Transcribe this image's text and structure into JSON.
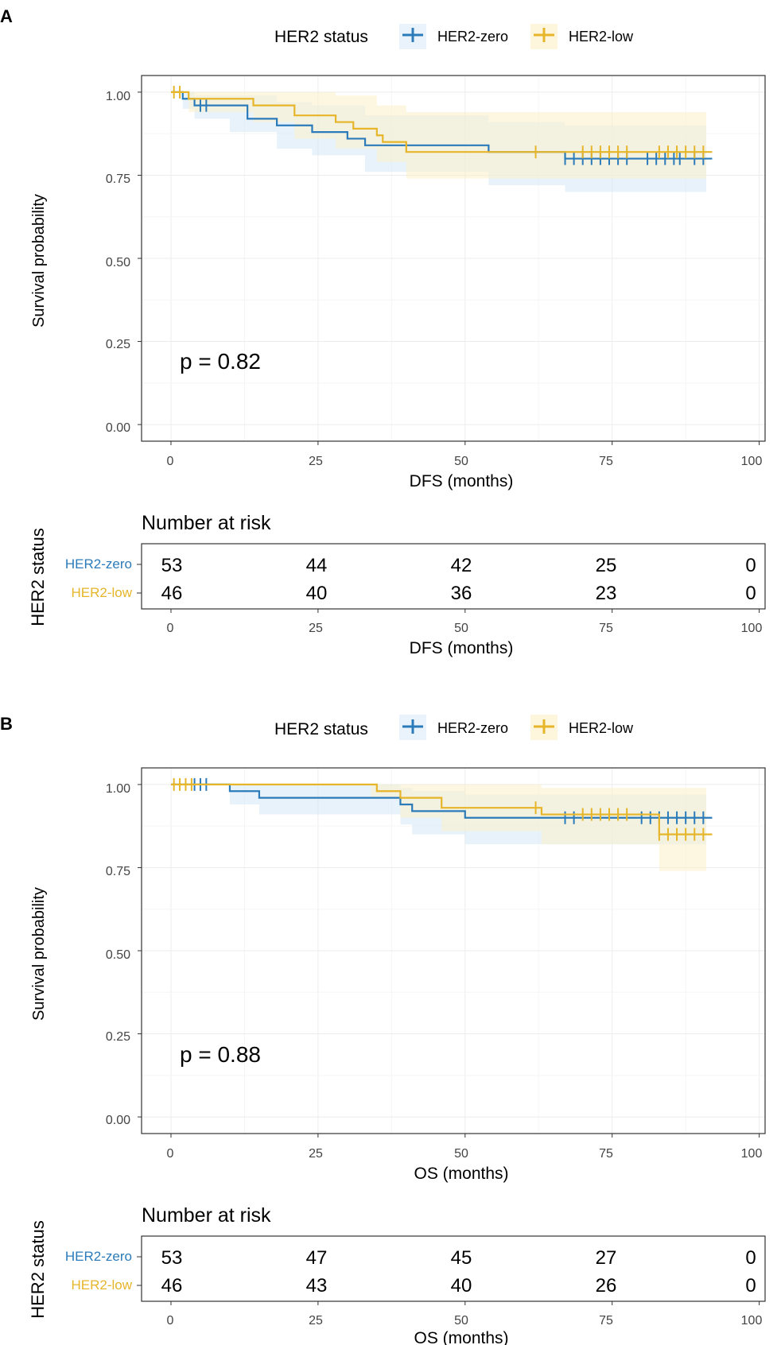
{
  "colors": {
    "zero": "#2b7bba",
    "low": "#e6b52a",
    "zero_band": "#d6e8f6",
    "low_band": "#fbf0c8"
  },
  "chart_data": [
    {
      "type": "line",
      "panel": "A",
      "legend_title": "HER2 status",
      "legend": [
        "HER2-zero",
        "HER2-low"
      ],
      "ylabel": "Survival probability",
      "xlabel": "DFS (months)",
      "xlim": [
        -5,
        101
      ],
      "ylim": [
        -0.05,
        1.05
      ],
      "xticks": [
        "0",
        "25",
        "50",
        "75",
        "100"
      ],
      "yticks": [
        "0.00",
        "0.25",
        "0.50",
        "0.75",
        "1.00"
      ],
      "pvalue": "p = 0.82",
      "series": [
        {
          "name": "HER2-zero",
          "steps": [
            [
              0,
              1
            ],
            [
              2,
              0.98
            ],
            [
              4,
              0.96
            ],
            [
              10,
              0.96
            ],
            [
              13,
              0.92
            ],
            [
              18,
              0.9
            ],
            [
              24,
              0.88
            ],
            [
              30,
              0.86
            ],
            [
              33,
              0.84
            ],
            [
              54,
              0.82
            ],
            [
              67,
              0.8
            ],
            [
              92,
              0.8
            ]
          ],
          "band": [
            [
              0,
              1,
              1
            ],
            [
              2,
              1,
              0.95
            ],
            [
              4,
              0.99,
              0.92
            ],
            [
              10,
              0.99,
              0.88
            ],
            [
              18,
              0.97,
              0.83
            ],
            [
              24,
              0.96,
              0.81
            ],
            [
              33,
              0.93,
              0.76
            ],
            [
              54,
              0.91,
              0.72
            ],
            [
              67,
              0.9,
              0.7
            ],
            [
              91,
              0.9,
              0.7
            ]
          ],
          "censor": [
            5,
            6,
            67,
            68.5,
            70,
            71.5,
            73,
            74.5,
            76,
            77.5,
            81,
            82.5,
            84,
            85.5,
            86.5,
            89,
            90.5
          ]
        },
        {
          "name": "HER2-low",
          "steps": [
            [
              0,
              1
            ],
            [
              3,
              0.98
            ],
            [
              14,
              0.96
            ],
            [
              21,
              0.93
            ],
            [
              28,
              0.91
            ],
            [
              31,
              0.89
            ],
            [
              35,
              0.87
            ],
            [
              36,
              0.85
            ],
            [
              40,
              0.82
            ],
            [
              92,
              0.82
            ]
          ],
          "band": [
            [
              0,
              1,
              1
            ],
            [
              3,
              1,
              0.94
            ],
            [
              14,
              1,
              0.91
            ],
            [
              21,
              1,
              0.86
            ],
            [
              28,
              0.99,
              0.83
            ],
            [
              35,
              0.96,
              0.79
            ],
            [
              40,
              0.94,
              0.74
            ],
            [
              91,
              0.94,
              0.74
            ]
          ],
          "censor": [
            0.5,
            1.5,
            62,
            70,
            71.5,
            73,
            74.5,
            76,
            77.5,
            83,
            84.5,
            86,
            87.5,
            89,
            90.5
          ]
        }
      ],
      "risk_table": {
        "title": "Number at risk",
        "ylabel": "HER2 status",
        "xlabel": "DFS (months)",
        "rows": [
          {
            "name": "HER2-zero",
            "values": [
              "53",
              "44",
              "42",
              "25",
              "0"
            ]
          },
          {
            "name": "HER2-low",
            "values": [
              "46",
              "40",
              "36",
              "23",
              "0"
            ]
          }
        ]
      }
    },
    {
      "type": "line",
      "panel": "B",
      "legend_title": "HER2 status",
      "legend": [
        "HER2-zero",
        "HER2-low"
      ],
      "ylabel": "Survival probability",
      "xlabel": "OS (months)",
      "xlim": [
        -5,
        101
      ],
      "ylim": [
        -0.05,
        1.05
      ],
      "xticks": [
        "0",
        "25",
        "50",
        "75",
        "100"
      ],
      "yticks": [
        "0.00",
        "0.25",
        "0.50",
        "0.75",
        "1.00"
      ],
      "pvalue": "p = 0.88",
      "series": [
        {
          "name": "HER2-zero",
          "steps": [
            [
              0,
              1
            ],
            [
              10,
              0.98
            ],
            [
              15,
              0.96
            ],
            [
              39,
              0.94
            ],
            [
              41,
              0.92
            ],
            [
              50,
              0.9
            ],
            [
              92,
              0.9
            ]
          ],
          "band": [
            [
              0,
              1,
              1
            ],
            [
              10,
              1,
              0.94
            ],
            [
              15,
              1,
              0.91
            ],
            [
              39,
              0.99,
              0.88
            ],
            [
              41,
              0.98,
              0.85
            ],
            [
              50,
              0.97,
              0.82
            ],
            [
              91,
              0.97,
              0.82
            ]
          ],
          "censor": [
            4,
            5,
            6,
            67,
            68.5,
            80,
            81.5,
            83,
            84.5,
            86,
            87.5,
            89,
            90.5
          ]
        },
        {
          "name": "HER2-low",
          "steps": [
            [
              0,
              1
            ],
            [
              34,
              1
            ],
            [
              35,
              0.98
            ],
            [
              39,
              0.96
            ],
            [
              46,
              0.93
            ],
            [
              63,
              0.91
            ],
            [
              83,
              0.85
            ],
            [
              92,
              0.85
            ]
          ],
          "band": [
            [
              0,
              1,
              1
            ],
            [
              34,
              1,
              0.96
            ],
            [
              39,
              1,
              0.9
            ],
            [
              46,
              1,
              0.86
            ],
            [
              63,
              0.99,
              0.82
            ],
            [
              83,
              0.99,
              0.74
            ],
            [
              91,
              0.99,
              0.74
            ]
          ],
          "censor": [
            0.5,
            1.5,
            2.5,
            3.5,
            62,
            70,
            71.5,
            73,
            74.5,
            76,
            77.5,
            83,
            84.5,
            86,
            87.5,
            89,
            90.5
          ]
        }
      ],
      "risk_table": {
        "title": "Number at risk",
        "ylabel": "HER2 status",
        "xlabel": "OS (months)",
        "rows": [
          {
            "name": "HER2-zero",
            "values": [
              "53",
              "47",
              "45",
              "27",
              "0"
            ]
          },
          {
            "name": "HER2-low",
            "values": [
              "46",
              "43",
              "40",
              "26",
              "0"
            ]
          }
        ]
      }
    }
  ]
}
